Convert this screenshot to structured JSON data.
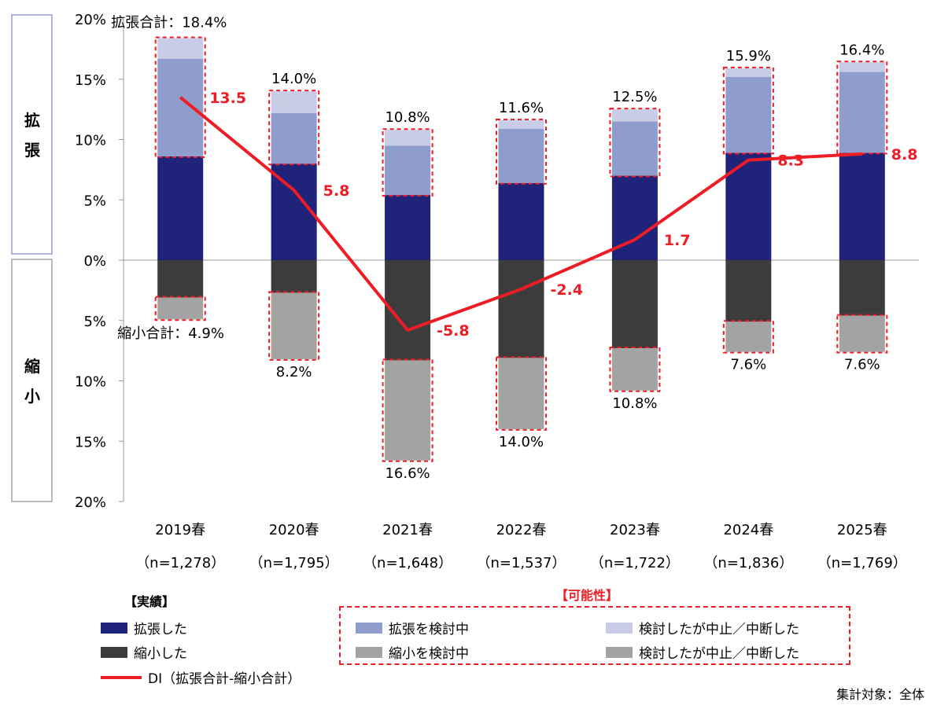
{
  "chart_data": {
    "type": "bar",
    "stacked": true,
    "categories": [
      "2019春",
      "2020春",
      "2021春",
      "2022春",
      "2023春",
      "2024春",
      "2025春"
    ],
    "sample_sizes": [
      "（n=1,278）",
      "（n=1,795）",
      "（n=1,648）",
      "（n=1,537）",
      "（n=1,722）",
      "（n=1,836）",
      "（n=1,769）"
    ],
    "ylim": [
      -20,
      20
    ],
    "y_ticks": [
      {
        "value": 20,
        "label": "20%"
      },
      {
        "value": 15,
        "label": "15%"
      },
      {
        "value": 10,
        "label": "10%"
      },
      {
        "value": 5,
        "label": "5%"
      },
      {
        "value": 0,
        "label": "0%"
      },
      {
        "value": -5,
        "label": "5%"
      },
      {
        "value": -10,
        "label": "10%"
      },
      {
        "value": -15,
        "label": "15%"
      },
      {
        "value": -20,
        "label": "20%"
      }
    ],
    "expansion_series": [
      {
        "name": "拡張した",
        "color": "#1f237a",
        "values": [
          8.6,
          8.0,
          5.4,
          6.4,
          7.0,
          8.9,
          8.9
        ]
      },
      {
        "name": "拡張を検討中",
        "color": "#8f9dcc",
        "values": [
          8.1,
          4.2,
          4.1,
          4.5,
          4.5,
          6.3,
          6.7
        ]
      },
      {
        "name": "検討したが中止／中断した",
        "color": "#c8cce6",
        "values": [
          1.7,
          1.8,
          1.3,
          0.7,
          1.0,
          0.7,
          0.8
        ]
      }
    ],
    "contraction_series": [
      {
        "name": "縮小した",
        "color": "#3c3c3c",
        "values": [
          3.1,
          2.7,
          8.3,
          8.1,
          7.3,
          5.1,
          4.6
        ]
      },
      {
        "name": "縮小を検討中",
        "color": "#a3a3a3",
        "values": [
          1.8,
          5.5,
          8.3,
          5.9,
          3.5,
          2.5,
          3.0
        ]
      },
      {
        "name": "検討したが中止／中断した",
        "color": "#a3a3a3",
        "values": [
          0,
          0,
          0,
          0,
          0,
          0,
          0
        ]
      }
    ],
    "expansion_totals": [
      18.4,
      14.0,
      10.8,
      11.6,
      12.5,
      15.9,
      16.4
    ],
    "expansion_total_labels": [
      "拡張合計：18.4%",
      "14.0%",
      "10.8%",
      "11.6%",
      "12.5%",
      "15.9%",
      "16.4%"
    ],
    "contraction_totals": [
      4.9,
      8.2,
      16.6,
      14.0,
      10.8,
      7.6,
      7.6
    ],
    "contraction_total_labels": [
      "縮小合計：4.9%",
      "8.2%",
      "16.6%",
      "14.0%",
      "10.8%",
      "7.6%",
      "7.6%"
    ],
    "di": {
      "name": "DI（拡張合計-縮小合計）",
      "color": "#ee1c25",
      "values": [
        13.5,
        5.8,
        -5.8,
        -2.4,
        1.7,
        8.3,
        8.8
      ],
      "labels": [
        "13.5",
        "5.8",
        "-5.8",
        "-2.4",
        "1.7",
        "8.3",
        "8.8"
      ]
    },
    "side_labels": {
      "expansion": "拡\n張",
      "contraction": "縮\n小"
    },
    "possibility_box_color": "#ee1c25"
  },
  "legend": {
    "actual_title": "【実績】",
    "possibility_title": "【可能性】",
    "expanded": "拡張した",
    "contracted": "縮小した",
    "di": "DI（拡張合計-縮小合計）",
    "considering_expansion": "拡張を検討中",
    "expansion_stopped": "検討したが中止／中断した",
    "considering_contraction": "縮小を検討中",
    "contraction_stopped": "検討したが中止／中断した"
  },
  "footer": "集計対象：全体"
}
